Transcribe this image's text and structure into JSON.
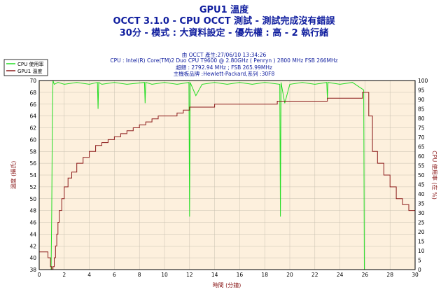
{
  "header": {
    "title1": "GPU1 溫度",
    "title2": "OCCT 3.1.0 - CPU OCCT 測試 - 測試完成沒有錯誤",
    "title3": "30分 - 模式 : 大資料設定 - 優先權 : 高 - 2 執行緒",
    "info1": "由 OCCT 產生:27/06/10 13:34:26",
    "info2": "CPU : Intel(R) Core(TM)2 Duo CPU T9600 @ 2.80GHz ( Penryn ) 2800 MHz FSB 266MHz",
    "info3": "超頻 : 2792.94 MHz ; FSB 265.99MHz",
    "info4": "主機板品牌 :Hewlett-Packard,系列 :30F8"
  },
  "legend": {
    "cpu_label": "CPU 使用率",
    "gpu_label": "GPU1 溫度"
  },
  "chart_data": {
    "type": "line",
    "xlabel": "時間 (分鐘)",
    "ylabel_left": "溫度 (攝氏)",
    "ylabel_right": "CPU 使用率 (在 %)",
    "xlim": [
      0,
      30
    ],
    "ylim_left": [
      38,
      70
    ],
    "ylim_right": [
      0,
      100
    ],
    "x_ticks": [
      0,
      2,
      4,
      6,
      8,
      10,
      12,
      14,
      16,
      18,
      20,
      22,
      24,
      26,
      28,
      30
    ],
    "y_ticks_left": [
      38,
      40,
      42,
      44,
      46,
      48,
      50,
      52,
      54,
      56,
      58,
      60,
      62,
      64,
      66,
      68,
      70
    ],
    "y_ticks_right": [
      0,
      5,
      10,
      15,
      20,
      25,
      30,
      35,
      40,
      45,
      50,
      55,
      60,
      65,
      70,
      75,
      80,
      85,
      90,
      95,
      100
    ],
    "grid": true,
    "legend_position": "top-left outside",
    "colors": {
      "cpu": "#22dd22",
      "gpu": "#8b1a1a",
      "plot_bg": "#fdf0dd",
      "title": "#0f1d9e"
    },
    "series": [
      {
        "name": "GPU1 溫度",
        "axis": "left",
        "x": [
          0,
          0.5,
          0.7,
          0.9,
          1.0,
          1.1,
          1.2,
          1.3,
          1.4,
          1.5,
          1.6,
          1.8,
          2.0,
          2.3,
          2.6,
          3.0,
          3.5,
          4.0,
          4.5,
          5.0,
          5.5,
          6.0,
          6.5,
          7.0,
          7.5,
          8.0,
          8.5,
          9.0,
          9.5,
          10.0,
          10.5,
          11.0,
          11.5,
          12.0,
          12.5,
          13.0,
          13.5,
          14.0,
          15.0,
          16.0,
          17.0,
          18.0,
          19.0,
          19.5,
          20.0,
          21.0,
          22.0,
          23.0,
          24.0,
          25.0,
          25.8,
          26.0,
          26.3,
          26.6,
          27.0,
          27.5,
          28.0,
          28.5,
          29.0,
          29.5,
          30.0
        ],
        "values": [
          41,
          41,
          40,
          38.5,
          38,
          38.5,
          40,
          42,
          44,
          46,
          48,
          50,
          52,
          53.5,
          54.5,
          56,
          57,
          58,
          59,
          59.5,
          60,
          60.5,
          61,
          61.5,
          62,
          62.5,
          63,
          63.5,
          64,
          64,
          64,
          64.5,
          65,
          65.5,
          65.5,
          65.5,
          65.5,
          66,
          66,
          66,
          66,
          66,
          66.5,
          66.5,
          66.5,
          66.5,
          66.5,
          67,
          67,
          67,
          68,
          68,
          64,
          58,
          56,
          54,
          52,
          50,
          49,
          48,
          47
        ]
      },
      {
        "name": "CPU 使用率",
        "axis": "right",
        "x": [
          0,
          0.95,
          1.0,
          1.05,
          1.1,
          1.2,
          1.5,
          2.0,
          3.0,
          4.0,
          4.65,
          4.7,
          4.75,
          5.0,
          6.0,
          7.0,
          8.4,
          8.45,
          8.5,
          9.0,
          10.0,
          11.0,
          11.95,
          12.0,
          12.05,
          12.5,
          13.0,
          14.0,
          15.0,
          16.0,
          17.0,
          18.0,
          19.2,
          19.25,
          19.3,
          19.6,
          20.0,
          21.0,
          22.0,
          22.95,
          23.0,
          23.05,
          24.0,
          25.0,
          25.9,
          25.95,
          26.0,
          26.05,
          26.1,
          27.0,
          28.0,
          29.0,
          30.0
        ],
        "values": [
          0,
          0,
          30,
          80,
          100,
          98,
          99,
          98,
          99,
          98,
          99,
          85,
          99,
          98,
          99,
          98,
          99,
          88,
          99,
          98,
          99,
          98,
          99,
          28,
          99,
          92,
          98,
          99,
          98,
          99,
          98,
          99,
          98,
          28,
          99,
          88,
          98,
          99,
          98,
          99,
          90,
          99,
          98,
          99,
          95,
          0,
          0,
          0,
          0,
          0,
          0,
          0,
          0
        ]
      }
    ]
  }
}
